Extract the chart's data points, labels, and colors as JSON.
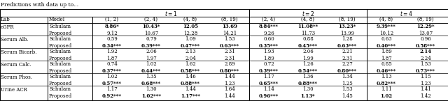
{
  "title": "Predictions with data up to...",
  "col_headers": [
    "(1, 2)",
    "(2, 4)",
    "(4, 8)",
    "(8, 19)",
    "(2, 4)",
    "(4, 8)",
    "(8, 19)",
    "(4, 8)",
    "(8, 19)"
  ],
  "labs": [
    "eGFR",
    "Serum Alb.",
    "Serum Bicarb.",
    "Serum Calc.",
    "Serum Phos.",
    "Urine ACR"
  ],
  "data": {
    "eGFR": {
      "Schulam": [
        "8.86*",
        "10.43*",
        "12.05",
        "13.69",
        "8.84***",
        "11.08**",
        "13.23*",
        "9.39***",
        "12.29*"
      ],
      "Proposed": [
        "9.12",
        "10.67",
        "12.28",
        "14.21",
        "9.26",
        "11.73",
        "13.99",
        "10.12",
        "13.07"
      ]
    },
    "Serum Alb.": {
      "Schulam": [
        "0.59",
        "0.79",
        "1.09",
        "1.53",
        "0.60",
        "0.88",
        "1.28",
        "0.63",
        "0.96"
      ],
      "Proposed": [
        "0.34***",
        "0.39***",
        "0.47***",
        "0.63***",
        "0.35***",
        "0.45***",
        "0.63***",
        "0.40***",
        "0.58***"
      ]
    },
    "Serum Bicarb.": {
      "Schulam": [
        "1.92",
        "2.06",
        "2.13",
        "2.31",
        "1.93",
        "2.06",
        "2.21",
        "1.89",
        "2.14"
      ],
      "Proposed": [
        "1.87",
        "1.97",
        "2.04",
        "2.31",
        "1.89",
        "1.99",
        "2.31",
        "1.87",
        "2.24"
      ]
    },
    "Serum Calc.": {
      "Schulam": [
        "0.74",
        "1.02",
        "1.62",
        "2.89",
        "0.72",
        "1.26",
        "2.27",
        "0.85",
        "1.53"
      ],
      "Proposed": [
        "0.37***",
        "0.44***",
        "0.58***",
        "0.80***",
        "0.39***",
        "0.54***",
        "0.80***",
        "0.46***",
        "0.73***"
      ]
    },
    "Serum Phos.": {
      "Schulam": [
        "1.02",
        "1.35",
        "1.46",
        "1.44",
        "1.17",
        "1.36",
        "1.34",
        "1.13",
        "1.15"
      ],
      "Proposed": [
        "0.57***",
        "0.68***",
        "0.88***",
        "1.23",
        "0.65***",
        "0.88***",
        "1.25",
        "0.82***",
        "1.23"
      ]
    },
    "Urine ACR": {
      "Schulam": [
        "1.17",
        "1.30",
        "1.44",
        "1.64",
        "1.14",
        "1.30",
        "1.53",
        "1.11",
        "1.41"
      ],
      "Proposed": [
        "0.92***",
        "1.02***",
        "1.17***",
        "1.44",
        "0.96***",
        "1.13*",
        "1.45",
        "1.02",
        "1.42"
      ]
    }
  },
  "bold_schulam": {
    "eGFR": [
      true,
      true,
      true,
      true,
      true,
      true,
      true,
      true,
      true
    ],
    "Serum Alb.": [
      false,
      false,
      false,
      false,
      false,
      false,
      false,
      false,
      false
    ],
    "Serum Bicarb.": [
      false,
      false,
      false,
      false,
      false,
      false,
      false,
      false,
      true
    ],
    "Serum Calc.": [
      false,
      false,
      false,
      false,
      false,
      false,
      false,
      false,
      false
    ],
    "Serum Phos.": [
      false,
      false,
      false,
      false,
      false,
      false,
      false,
      false,
      false
    ],
    "Urine ACR": [
      false,
      false,
      false,
      false,
      false,
      false,
      false,
      false,
      false
    ]
  },
  "bold_proposed": {
    "eGFR": [
      false,
      false,
      false,
      false,
      false,
      false,
      false,
      false,
      false
    ],
    "Serum Alb.": [
      true,
      true,
      true,
      true,
      true,
      true,
      true,
      true,
      true
    ],
    "Serum Bicarb.": [
      false,
      false,
      false,
      false,
      false,
      false,
      false,
      false,
      false
    ],
    "Serum Calc.": [
      true,
      true,
      true,
      true,
      true,
      true,
      true,
      true,
      true
    ],
    "Serum Phos.": [
      true,
      true,
      true,
      false,
      true,
      true,
      false,
      true,
      false
    ],
    "Urine ACR": [
      true,
      true,
      true,
      false,
      true,
      true,
      false,
      true,
      false
    ]
  }
}
